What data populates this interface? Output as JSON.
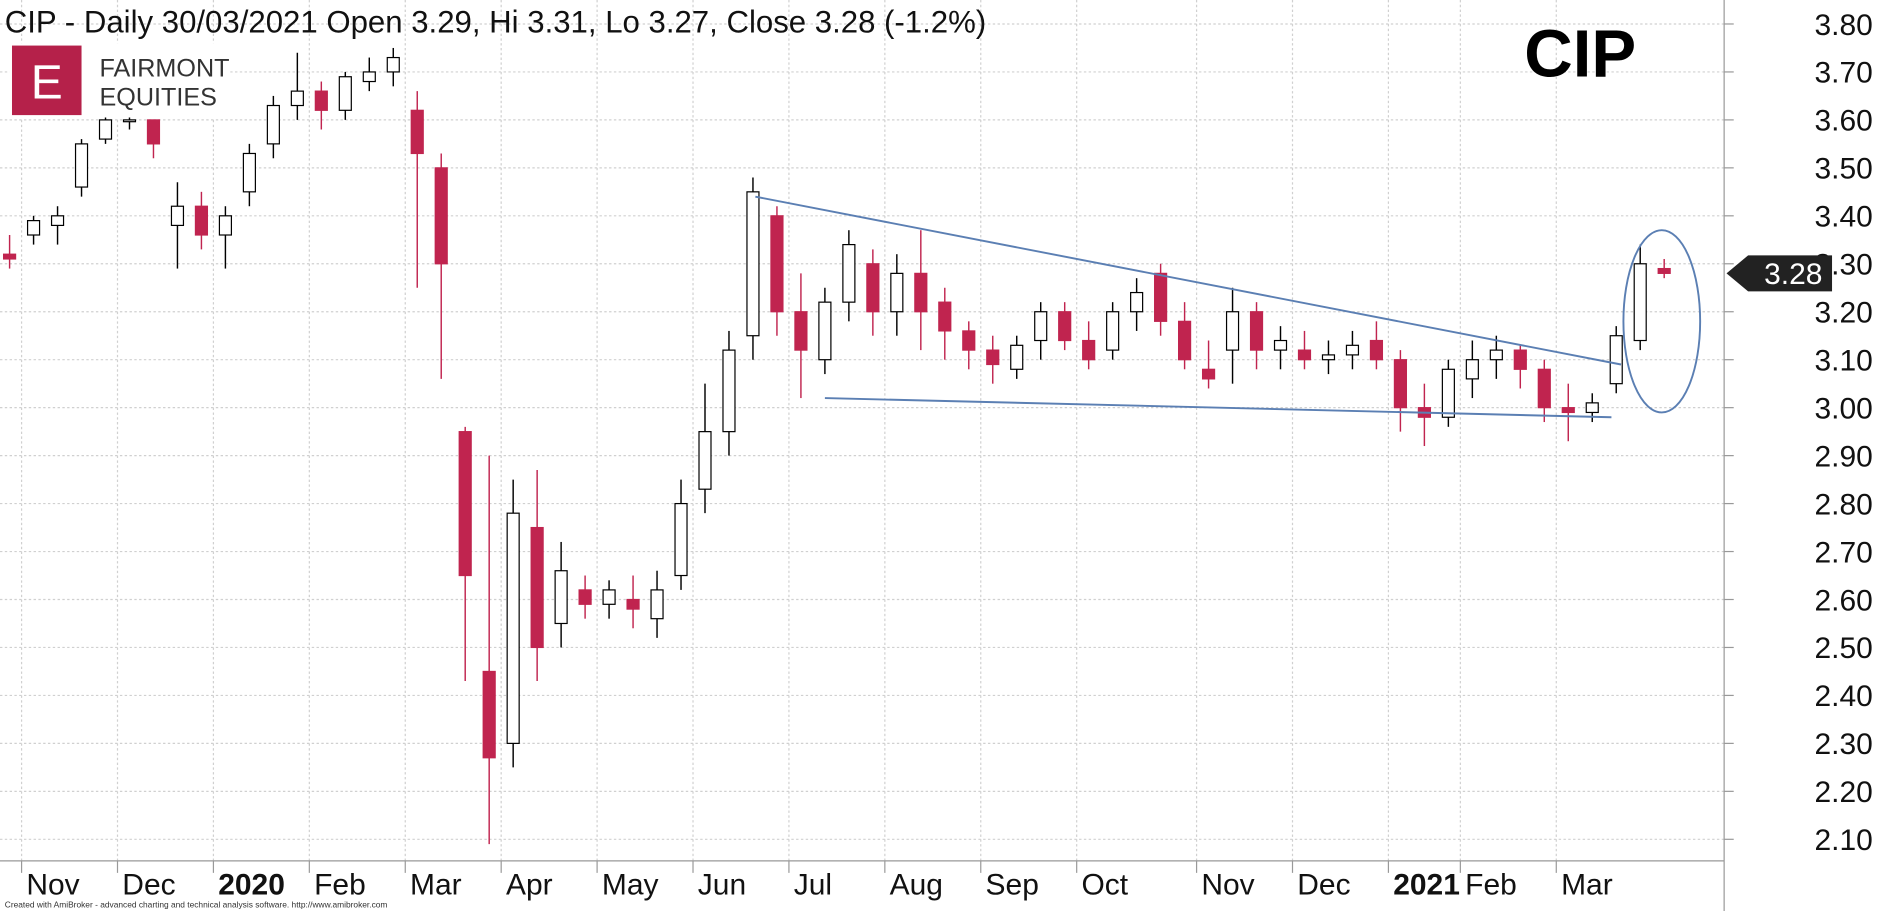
{
  "chart_data": {
    "type": "candlestick",
    "title": "CIP - Daily 30/03/2021 Open 3.29, Hi 3.31, Lo 3.27, Close 3.28 (-1.2%)",
    "symbol_label": "CIP",
    "logo": {
      "letter": "E",
      "line1": "FAIRMONT",
      "line2": "EQUITIES"
    },
    "footer": "Created with AmiBroker - advanced charting and technical analysis software. http://www.amibroker.com",
    "categories": [
      null,
      "Nov",
      null,
      null,
      null,
      "Dec",
      null,
      null,
      null,
      "2020",
      null,
      null,
      null,
      "Feb",
      null,
      null,
      null,
      "Mar",
      null,
      null,
      null,
      "Apr",
      null,
      null,
      null,
      "May",
      null,
      null,
      null,
      "Jun",
      null,
      null,
      null,
      "Jul",
      null,
      null,
      null,
      "Aug",
      null,
      null,
      null,
      "Sep",
      null,
      null,
      null,
      "Oct",
      null,
      null,
      null,
      null,
      "Nov",
      null,
      null,
      null,
      "Dec",
      null,
      null,
      null,
      "2021",
      null,
      null,
      "Feb",
      null,
      null,
      null,
      "Mar",
      null,
      null,
      null,
      null
    ],
    "open": [
      3.32,
      3.36,
      3.38,
      3.46,
      3.56,
      3.6,
      3.6,
      3.38,
      3.42,
      3.36,
      3.45,
      3.55,
      3.63,
      3.66,
      3.62,
      3.68,
      3.7,
      3.62,
      3.5,
      2.95,
      2.45,
      2.3,
      2.75,
      2.55,
      2.62,
      2.59,
      2.6,
      2.56,
      2.65,
      2.83,
      2.95,
      3.15,
      3.4,
      3.2,
      3.1,
      3.22,
      3.3,
      3.2,
      3.28,
      3.22,
      3.16,
      3.12,
      3.08,
      3.14,
      3.2,
      3.14,
      3.12,
      3.2,
      3.28,
      3.18,
      3.08,
      3.12,
      3.2,
      3.12,
      3.12,
      3.1,
      3.11,
      3.14,
      3.1,
      3.0,
      2.98,
      3.06,
      3.1,
      3.12,
      3.08,
      3.0,
      2.99,
      3.05,
      3.14,
      3.29
    ],
    "high": [
      3.36,
      3.4,
      3.42,
      3.56,
      3.63,
      3.62,
      3.6,
      3.47,
      3.45,
      3.42,
      3.55,
      3.65,
      3.74,
      3.68,
      3.7,
      3.73,
      3.75,
      3.66,
      3.53,
      2.96,
      2.9,
      2.85,
      2.87,
      2.72,
      2.65,
      2.64,
      2.65,
      2.66,
      2.85,
      3.05,
      3.16,
      3.48,
      3.42,
      3.28,
      3.25,
      3.37,
      3.33,
      3.32,
      3.37,
      3.25,
      3.18,
      3.15,
      3.15,
      3.22,
      3.22,
      3.18,
      3.22,
      3.27,
      3.3,
      3.22,
      3.14,
      3.25,
      3.22,
      3.17,
      3.16,
      3.14,
      3.16,
      3.18,
      3.12,
      3.05,
      3.1,
      3.14,
      3.15,
      3.13,
      3.1,
      3.05,
      3.03,
      3.17,
      3.34,
      3.31
    ],
    "low": [
      3.29,
      3.34,
      3.34,
      3.44,
      3.55,
      3.58,
      3.52,
      3.29,
      3.33,
      3.29,
      3.42,
      3.52,
      3.6,
      3.58,
      3.6,
      3.66,
      3.67,
      3.25,
      3.06,
      2.43,
      2.09,
      2.25,
      2.43,
      2.5,
      2.56,
      2.56,
      2.54,
      2.52,
      2.62,
      2.78,
      2.9,
      3.1,
      3.15,
      3.02,
      3.07,
      3.18,
      3.15,
      3.15,
      3.12,
      3.1,
      3.08,
      3.05,
      3.06,
      3.1,
      3.12,
      3.08,
      3.1,
      3.16,
      3.15,
      3.08,
      3.04,
      3.05,
      3.08,
      3.08,
      3.08,
      3.07,
      3.08,
      3.08,
      2.95,
      2.92,
      2.96,
      3.02,
      3.06,
      3.04,
      2.97,
      2.93,
      2.97,
      3.03,
      3.12,
      3.27
    ],
    "close": [
      3.31,
      3.39,
      3.4,
      3.55,
      3.6,
      3.6,
      3.55,
      3.42,
      3.36,
      3.4,
      3.53,
      3.63,
      3.66,
      3.62,
      3.69,
      3.7,
      3.73,
      3.53,
      3.3,
      2.65,
      2.27,
      2.78,
      2.5,
      2.66,
      2.59,
      2.62,
      2.58,
      2.62,
      2.8,
      2.95,
      3.12,
      3.45,
      3.2,
      3.12,
      3.22,
      3.34,
      3.2,
      3.28,
      3.2,
      3.16,
      3.12,
      3.09,
      3.13,
      3.2,
      3.14,
      3.1,
      3.2,
      3.24,
      3.18,
      3.1,
      3.06,
      3.2,
      3.12,
      3.14,
      3.1,
      3.11,
      3.13,
      3.1,
      3.0,
      2.98,
      3.08,
      3.1,
      3.12,
      3.08,
      3.0,
      2.99,
      3.01,
      3.15,
      3.3,
      3.28
    ],
    "up_color": "#ffffff",
    "down_color": "#c0244f",
    "ylim": [
      2.055,
      3.85
    ],
    "yticks": [
      {
        "value": 2.1,
        "label": "2.10"
      },
      {
        "value": 2.2,
        "label": "2.20"
      },
      {
        "value": 2.3,
        "label": "2.30"
      },
      {
        "value": 2.4,
        "label": "2.40"
      },
      {
        "value": 2.5,
        "label": "2.50"
      },
      {
        "value": 2.6,
        "label": "2.60"
      },
      {
        "value": 2.7,
        "label": "2.70"
      },
      {
        "value": 2.8,
        "label": "2.80"
      },
      {
        "value": 2.9,
        "label": "2.90"
      },
      {
        "value": 3.0,
        "label": "3.00"
      },
      {
        "value": 3.1,
        "label": "3.10"
      },
      {
        "value": 3.2,
        "label": "3.20"
      },
      {
        "value": 3.3,
        "label": "3.30"
      },
      {
        "value": 3.4,
        "label": "3.40"
      },
      {
        "value": 3.5,
        "label": "3.50"
      },
      {
        "value": 3.6,
        "label": "3.60"
      },
      {
        "value": 3.7,
        "label": "3.70"
      },
      {
        "value": 3.8,
        "label": "3.80"
      }
    ],
    "grid": true,
    "trendlines": [
      {
        "x": [
          31.1,
          67.2
        ],
        "y": [
          3.44,
          3.09
        ],
        "color": "#5b7fb3"
      },
      {
        "x": [
          34,
          66.8
        ],
        "y": [
          3.02,
          2.98
        ],
        "color": "#5b7fb3"
      }
    ],
    "ellipse": {
      "cx": 68.9,
      "cy": 3.18,
      "rx": 1.6,
      "ry": 0.19,
      "color": "#5b7fb3"
    }
  }
}
